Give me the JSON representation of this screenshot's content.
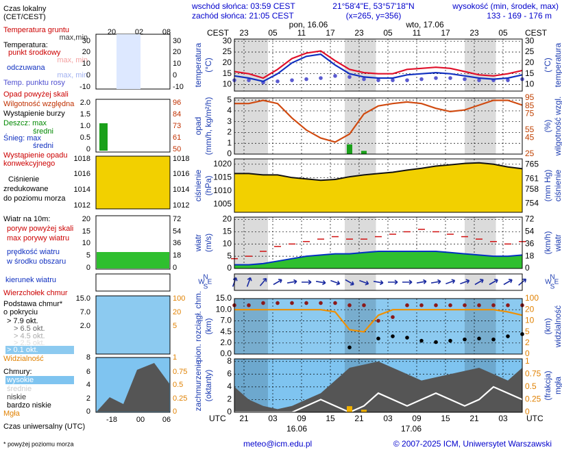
{
  "header": {
    "sunrise": "wschód słońca: 03:59 CEST",
    "sunset": "zachód słońca: 21:05 CEST",
    "coords": "21°58'4\"E, 53°57'18\"N",
    "grid_point": "(x=265, y=356)",
    "elevation_title": "wysokość (min, środek, max)",
    "elevation": "133 - 169 - 176 m"
  },
  "time": {
    "xlim": [
      0,
      60
    ],
    "x": [
      0,
      3,
      6,
      9,
      12,
      15,
      18,
      21,
      24,
      27,
      30,
      33,
      36,
      39,
      42,
      45,
      48,
      51,
      54,
      57,
      60
    ],
    "top_label": "CEST",
    "bottom_label": "UTC",
    "cest_ticks": [
      {
        "value": 2,
        "label": "23"
      },
      {
        "value": 8,
        "label": "05"
      },
      {
        "value": 14,
        "label": "11"
      },
      {
        "value": 20,
        "label": "17"
      },
      {
        "value": 26,
        "label": "23"
      },
      {
        "value": 32,
        "label": "05"
      },
      {
        "value": 38,
        "label": "11"
      },
      {
        "value": 44,
        "label": "17"
      },
      {
        "value": 50,
        "label": "23"
      },
      {
        "value": 56,
        "label": "05"
      }
    ],
    "utc_ticks": [
      {
        "value": 2,
        "label": "21"
      },
      {
        "value": 8,
        "label": "03"
      },
      {
        "value": 14,
        "label": "09"
      },
      {
        "value": 20,
        "label": "15"
      },
      {
        "value": 26,
        "label": "21"
      },
      {
        "value": 32,
        "label": "03"
      },
      {
        "value": 38,
        "label": "09"
      },
      {
        "value": 44,
        "label": "15"
      },
      {
        "value": 50,
        "label": "21"
      },
      {
        "value": 56,
        "label": "03"
      }
    ],
    "top_dates": [
      "pon, 16.06",
      "wto, 17.06"
    ],
    "bottom_dates": [
      "16.06",
      "17.06"
    ],
    "night": [
      [
        0,
        7
      ],
      [
        23,
        29.5
      ],
      [
        48,
        54.5
      ]
    ]
  },
  "sidebar": {
    "local_time": "Czas lokalny",
    "local_zone": "(CET/CEST)",
    "top_ticks": [
      "20",
      "02",
      "08"
    ],
    "ground_temp": "Temperatura gruntu",
    "ground_range": "max,min",
    "temp_title": "Temperatura:",
    "temp_mid": "punkt środkowy",
    "temp_mid_range": "max, min",
    "perceived": "odczuwana",
    "perceived_range": "max, min",
    "dew_point": "Temp. punktu rosy",
    "temp_ticks": [
      "30",
      "20",
      "10",
      "0",
      "-10"
    ],
    "precip_above": "Opad powyżej skali",
    "humidity": "Wilgotność względna",
    "storm": "Wystąpienie burzy",
    "rain_max": "Deszcz: max",
    "rain_mean": "średni",
    "snow_max": "Śnieg: max",
    "snow_mean": "średni",
    "convective_1": "Wystąpienie opadu",
    "convective_2": "konwekcyjnego",
    "precip_ticks": [
      "2.0",
      "1.5",
      "1.0",
      "0.5",
      "0"
    ],
    "humidity_ticks": [
      "96",
      "84",
      "73",
      "61",
      "50"
    ],
    "pressure_1": "Ciśnienie",
    "pressure_2": "zredukowane",
    "pressure_3": "do poziomu morza",
    "pressure_ticks": [
      "1018",
      "1016",
      "1014",
      "1012"
    ],
    "wind_title": "Wiatr na 10m:",
    "gust_above": "poryw powyżej skali",
    "gust_max": "max porywy wiatru",
    "wind_speed_1": "prędkość wiatru",
    "wind_speed_2": "w środku obszaru",
    "wind_ticks": [
      "20",
      "15",
      "10",
      "5",
      "0"
    ],
    "wind_kmh_ticks": [
      "72",
      "54",
      "36",
      "18",
      "0"
    ],
    "wind_dir": "kierunek wiatru",
    "cloud_top": "Wierzchołek chmur",
    "cloud_base_1": "Podstawa chmur*",
    "cloud_base_2": "o pokryciu",
    "okt_79": "> 7.9 okt.",
    "okt_65": "> 6.5 okt.",
    "okt_45": "> 4.5 okt.",
    "okt_25": "> 2.5 okt.",
    "okt_01": "> 0.1 okt.",
    "visibility": "Widzialność",
    "base_ticks": [
      "15.0",
      "7.0",
      "2.0"
    ],
    "vis_ticks": [
      "100",
      "20",
      "5"
    ],
    "clouds": "Chmury:",
    "high": "wysokie",
    "mid": "średnie",
    "low": "niskie",
    "very_low": "bardzo niskie",
    "fog": "Mgła",
    "cloud_ticks": [
      "8",
      "6",
      "4",
      "2",
      "0"
    ],
    "fog_ticks": [
      "1",
      "0.75",
      "0.5",
      "0.25",
      "0"
    ],
    "bottom_ticks": [
      "-18",
      "00",
      "06"
    ],
    "utc": "Czas uniwersalny (UTC)",
    "footnote": "* powyżej poziomu morza"
  },
  "chart_data": [
    {
      "type": "line",
      "y_label": "temperatura",
      "y_unit": "(°C)",
      "y2_label": "temperatura",
      "y2_unit": "(°C)",
      "ylim": [
        7,
        31
      ],
      "yticks": [
        10,
        15,
        20,
        25,
        30
      ],
      "y2lim": [
        7,
        31
      ],
      "y2ticks": [
        10,
        15,
        20,
        25,
        30
      ],
      "grid": true,
      "background": "#ffffff",
      "series": [
        {
          "kind": "dots",
          "color": "#5a5ad0",
          "values": [
            12,
            12,
            11,
            11.5,
            12,
            12.5,
            13,
            14,
            13.5,
            12.5,
            12,
            12,
            12,
            12.5,
            13,
            13,
            12.5,
            12,
            12,
            12,
            12.5
          ]
        },
        {
          "kind": "line",
          "color": "#1030c0",
          "values": [
            14,
            13,
            11.5,
            15,
            20,
            23,
            24,
            19,
            15,
            13.5,
            13,
            13,
            14.5,
            15,
            15.5,
            15,
            14,
            13,
            12.5,
            13,
            14.5
          ]
        },
        {
          "kind": "line",
          "color": "#e0102a",
          "values": [
            16,
            15,
            13,
            17,
            22,
            24.5,
            25.5,
            21,
            17,
            15.5,
            15,
            15,
            17,
            17.5,
            18,
            17.5,
            16,
            14.5,
            14,
            15,
            16.5
          ]
        }
      ]
    },
    {
      "type": "combo",
      "y_label": "opad",
      "y_unit": "(mm/h, kg/m²/h)",
      "y2_label": "wilgotność wzgl.",
      "y2_unit": "(%)",
      "y2_color": "#c04000",
      "ylim": [
        0,
        5.2
      ],
      "yticks": [
        0,
        1,
        2,
        3,
        4,
        5
      ],
      "y2lim": [
        25,
        95
      ],
      "y2ticks": [
        25,
        45,
        55,
        75,
        85,
        95
      ],
      "grid": true,
      "background": "#ffffff",
      "series": [
        {
          "kind": "bar",
          "color": "#1aa01a",
          "values": [
            0,
            0,
            0,
            0,
            0,
            0,
            0,
            0,
            0.9,
            0.3,
            0,
            0,
            0,
            0,
            0,
            0,
            0,
            0,
            0,
            0,
            0
          ]
        },
        {
          "kind": "line",
          "axis": "y2",
          "color": "#d04a10",
          "values": [
            88,
            88,
            92,
            88,
            70,
            55,
            45,
            40,
            50,
            75,
            85,
            88,
            90,
            88,
            82,
            78,
            80,
            86,
            92,
            92,
            86
          ]
        }
      ]
    },
    {
      "type": "area",
      "y_label": "ciśnienie",
      "y_unit": "(hPa)",
      "y2_label": "ciśnienie",
      "y2_unit": "(mm Hg)",
      "ylim": [
        1002,
        1022
      ],
      "yticks": [
        1005,
        1010,
        1015,
        1020
      ],
      "y2lim": [
        751.6,
        766.6
      ],
      "y2ticks": [
        754,
        758,
        761,
        765
      ],
      "grid": true,
      "background": "#ffffff",
      "series": [
        {
          "kind": "area",
          "color": "#f2d000",
          "stroke": "#111111",
          "values": [
            1016.5,
            1016.5,
            1016,
            1016,
            1015,
            1014.5,
            1014,
            1014.3,
            1015.3,
            1016,
            1016.5,
            1017,
            1017.8,
            1018.5,
            1019.3,
            1019.8,
            1020.3,
            1020.5,
            1020,
            1019,
            1018.3
          ]
        }
      ]
    },
    {
      "type": "combo",
      "y_label": "wiatr",
      "y_unit": "(m/s)",
      "y2_label": "wiatr",
      "y2_unit": "(km/h)",
      "ylim": [
        0,
        21
      ],
      "yticks": [
        0,
        5,
        10,
        15,
        20
      ],
      "y2lim": [
        0,
        75.6
      ],
      "y2ticks": [
        0,
        18,
        36,
        54,
        72
      ],
      "grid": true,
      "background": "#ffffff",
      "series": [
        {
          "kind": "area",
          "color": "#2fbf2f",
          "stroke": "#0030c0",
          "values": [
            1.5,
            1.5,
            2,
            3,
            4,
            5,
            5.5,
            6,
            6,
            6.5,
            7,
            7,
            7,
            7,
            7,
            6.5,
            6,
            5.5,
            5,
            5,
            5.5
          ]
        },
        {
          "kind": "dash",
          "color": "#d01010",
          "values": [
            4,
            5,
            7,
            9,
            10,
            11,
            12,
            13,
            12,
            12,
            13,
            14,
            15,
            16,
            15,
            14,
            13,
            12,
            11,
            10,
            11
          ]
        }
      ]
    },
    {
      "type": "quiver",
      "compass": [
        "N",
        "W",
        "E",
        "S"
      ],
      "color": "#1a2aa0",
      "directions": [
        200,
        200,
        220,
        240,
        260,
        270,
        280,
        290,
        300,
        290,
        280,
        270,
        270,
        260,
        260,
        250,
        250,
        240,
        240,
        240,
        230
      ]
    },
    {
      "type": "combo",
      "y_label": "pion. rozciągł. chm.",
      "y_unit": "(km)",
      "y2_label": "widzialność",
      "y2_unit": "(km)",
      "y2_color": "#e08000",
      "scale": "piecewise",
      "ylim": [
        0,
        15
      ],
      "yticks": [
        {
          "value": 0,
          "label": "0.0"
        },
        {
          "value": 2,
          "label": "2.0"
        },
        {
          "value": 4.5,
          "label": "4.5"
        },
        {
          "value": 7,
          "label": "7.0"
        },
        {
          "value": 10,
          "label": "10.0"
        },
        {
          "value": 15,
          "label": "15.0"
        }
      ],
      "y2lim": [
        0,
        100
      ],
      "y2ticks": [
        0,
        2,
        5,
        10,
        20,
        100
      ],
      "grid": true,
      "background": "#8ccaf0",
      "series": [
        {
          "kind": "line",
          "axis": "y2",
          "color": "#f09000",
          "values": [
            20,
            20,
            20,
            20,
            20,
            20,
            20,
            18,
            6,
            5,
            15,
            20,
            20,
            20,
            20,
            20,
            20,
            20,
            20,
            18,
            15
          ]
        },
        {
          "kind": "dots",
          "color": "#8b1a1a",
          "values": [
            12,
            12,
            13,
            13,
            13,
            13,
            13,
            13,
            12,
            12,
            7,
            8,
            12,
            12,
            12,
            12,
            12,
            12,
            12,
            12,
            12
          ]
        },
        {
          "kind": "dots",
          "color": "#000000",
          "values": [
            null,
            null,
            null,
            null,
            null,
            null,
            null,
            null,
            1.2,
            null,
            3,
            3.5,
            3.2,
            2.5,
            2.2,
            2.5,
            2.8,
            3,
            2.8,
            3.5,
            4
          ]
        }
      ]
    },
    {
      "type": "combo",
      "y_label": "zachmurzenie",
      "y_unit": "(oktanty)",
      "y2_label": "mgła",
      "y2_unit": "(frakcja)",
      "y2_color": "#e08000",
      "ylim": [
        0,
        8.4
      ],
      "yticks": [
        0,
        2,
        4,
        6,
        8
      ],
      "y2lim": [
        0,
        1.05
      ],
      "y2ticks": [
        0,
        0.25,
        0.5,
        0.75,
        1
      ],
      "grid": true,
      "background": "#7fc4f0",
      "series": [
        {
          "kind": "area",
          "color": "#555555",
          "values": [
            4,
            2,
            1,
            0.5,
            1,
            2,
            3,
            5,
            7,
            7.5,
            8,
            7,
            6,
            5,
            5.5,
            6,
            6.5,
            7,
            6,
            5,
            7
          ]
        },
        {
          "kind": "line",
          "color": "#ffffff",
          "values": [
            0,
            0,
            0,
            0,
            0,
            1,
            2,
            1,
            0,
            1,
            3,
            2,
            1,
            2,
            3,
            2,
            1,
            2,
            4,
            3,
            2
          ]
        },
        {
          "kind": "bar",
          "axis": "y2",
          "color": "#f0b000",
          "values": [
            0,
            0,
            0,
            0,
            0,
            0,
            0,
            0,
            0.12,
            0.05,
            0,
            0,
            0,
            0,
            0,
            0,
            0,
            0,
            0,
            0,
            0
          ]
        }
      ]
    }
  ],
  "footer": {
    "email": "meteo@icm.edu.pl",
    "copyright": "© 2007-2025 ICM, Uniwersytet Warszawski"
  }
}
